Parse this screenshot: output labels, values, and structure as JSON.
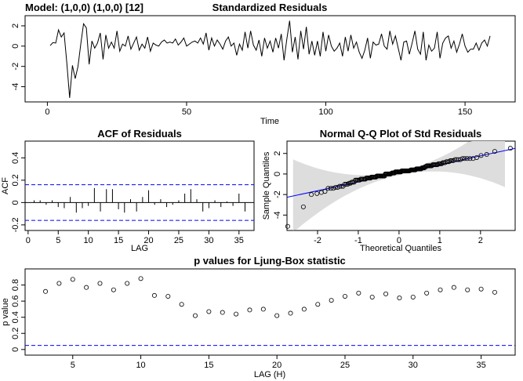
{
  "model_label": "Model: (1,0,0) (1,0,0) [12]",
  "chart_data": [
    {
      "id": "std_resid",
      "type": "line",
      "title": "Standardized Residuals",
      "xlabel": "Time",
      "ylabel": "",
      "xlim": [
        -8,
        168
      ],
      "ylim": [
        -5.5,
        3.0
      ],
      "xticks": [
        0,
        50,
        100,
        150
      ],
      "yticks": [
        -4,
        -2,
        0,
        2
      ],
      "x_start": 1,
      "values": [
        0.05,
        0.35,
        0.3,
        1.6,
        0.9,
        1.3,
        -1.7,
        -5.1,
        -1.9,
        -3.2,
        -2.0,
        0.2,
        2.2,
        1.8,
        -1.8,
        0.5,
        -0.2,
        0.3,
        1.3,
        -1.3,
        1.1,
        -0.2,
        0.4,
        -0.2,
        1.5,
        -0.5,
        0.2,
        0.0,
        1.0,
        -0.3,
        0.3,
        0.9,
        -0.4,
        0.2,
        -0.2,
        0.9,
        -0.5,
        0.3,
        0.1,
        0.0,
        0.4,
        0.6,
        0.3,
        0.4,
        0.3,
        0.7,
        0.1,
        0.4,
        0.8,
        0.0,
        0.2,
        0.4,
        0.5,
        0.3,
        0.8,
        0.2,
        1.3,
        -0.4,
        0.8,
        0.0,
        0.6,
        0.2,
        -0.3,
        0.5,
        0.9,
        0.0,
        0.3,
        -0.9,
        0.2,
        -0.4,
        1.4,
        -0.2,
        1.5,
        0.1,
        -0.4,
        0.6,
        -1.0,
        0.8,
        -0.2,
        0.5,
        -0.6,
        0.8,
        -0.2,
        1.2,
        -1.4,
        0.7,
        2.5,
        -0.6,
        0.9,
        -1.3,
        1.5,
        -0.3,
        1.9,
        -0.8,
        0.5,
        -0.9,
        0.5,
        -1.0,
        1.4,
        -0.5,
        1.1,
        0.0,
        -0.5,
        -0.2,
        0.3,
        -1.0,
        0.9,
        -0.5,
        1.1,
        -0.2,
        0.4,
        -0.6,
        -1.2,
        -0.4,
        0.8,
        -1.2,
        0.4,
        0.1,
        0.2,
        1.2,
        0.0,
        -0.3,
        1.5,
        0.2,
        1.0,
        -0.2,
        -1.4,
        0.4,
        0.5,
        -0.8,
        0.3,
        1.5,
        -0.3,
        -0.8,
        1.4,
        -1.4,
        0.1,
        -0.5,
        -0.2,
        1.4,
        -1.2,
        0.3,
        0.8,
        1.0,
        -0.2,
        0.5,
        -0.6,
        0.2,
        1.2,
        0.0,
        -0.6,
        -0.3,
        -0.3,
        0.3,
        -0.4,
        0.3,
        0.6,
        0.0,
        1.0
      ]
    },
    {
      "id": "acf",
      "type": "bar",
      "title": "ACF of Residuals",
      "xlabel": "LAG",
      "ylabel": "ACF",
      "xlim": [
        -0.5,
        37.5
      ],
      "ylim": [
        -0.25,
        0.55
      ],
      "xticks": [
        0,
        5,
        10,
        15,
        20,
        25,
        30,
        35
      ],
      "yticks": [
        -0.2,
        0.0,
        0.2,
        0.4
      ],
      "ci": 0.16,
      "lags": [
        1,
        2,
        3,
        4,
        5,
        6,
        7,
        8,
        9,
        10,
        11,
        12,
        13,
        14,
        15,
        16,
        17,
        18,
        19,
        20,
        21,
        22,
        23,
        24,
        25,
        26,
        27,
        28,
        29,
        30,
        31,
        32,
        33,
        34,
        35,
        36
      ],
      "values": [
        0.02,
        0.02,
        -0.02,
        0.02,
        -0.04,
        -0.05,
        0.05,
        -0.09,
        -0.05,
        -0.03,
        0.13,
        -0.08,
        0.12,
        0.12,
        -0.06,
        -0.09,
        0.03,
        -0.08,
        0.05,
        0.11,
        -0.02,
        0.03,
        -0.04,
        -0.02,
        0.02,
        0.08,
        0.12,
        0.03,
        -0.08,
        -0.05,
        0.02,
        -0.04,
        0.01,
        -0.03,
        0.08,
        -0.08
      ]
    },
    {
      "id": "qq",
      "type": "scatter",
      "title": "Normal Q-Q Plot of Std Residuals",
      "xlabel": "Theoretical Quantiles",
      "ylabel": "Sample Quantiles",
      "xlim": [
        -2.75,
        2.85
      ],
      "ylim": [
        -5.5,
        3.2
      ],
      "xticks": [
        -2,
        -1,
        0,
        1,
        2
      ],
      "yticks": [
        -4,
        -2,
        0,
        2
      ],
      "ref_line": {
        "intercept": 0.07,
        "slope": 0.85
      },
      "note": "points: ordered standardized residuals vs normal quantiles"
    },
    {
      "id": "ljung",
      "type": "scatter",
      "title": "p values for Ljung-Box statistic",
      "xlabel": "LAG (H)",
      "ylabel": "p value",
      "xlim": [
        1.5,
        37.5
      ],
      "ylim": [
        -0.07,
        1.0
      ],
      "xticks": [
        5,
        10,
        15,
        20,
        25,
        30,
        35
      ],
      "yticks": [
        0.0,
        0.2,
        0.4,
        0.6,
        0.8
      ],
      "threshold": 0.05,
      "x": [
        3,
        4,
        5,
        6,
        7,
        8,
        9,
        10,
        11,
        12,
        13,
        14,
        15,
        16,
        17,
        18,
        19,
        20,
        21,
        22,
        23,
        24,
        25,
        26,
        27,
        28,
        29,
        30,
        31,
        32,
        33,
        34,
        35,
        36
      ],
      "values": [
        0.72,
        0.82,
        0.87,
        0.77,
        0.82,
        0.74,
        0.82,
        0.88,
        0.67,
        0.66,
        0.56,
        0.42,
        0.47,
        0.46,
        0.44,
        0.49,
        0.5,
        0.42,
        0.45,
        0.5,
        0.56,
        0.61,
        0.66,
        0.7,
        0.65,
        0.69,
        0.64,
        0.65,
        0.7,
        0.74,
        0.77,
        0.74,
        0.75,
        0.71
      ]
    }
  ],
  "colors": {
    "axis": "#000000",
    "ci_line": "#0000ff",
    "ref_line": "#0000ff",
    "band": "#dddddd"
  }
}
